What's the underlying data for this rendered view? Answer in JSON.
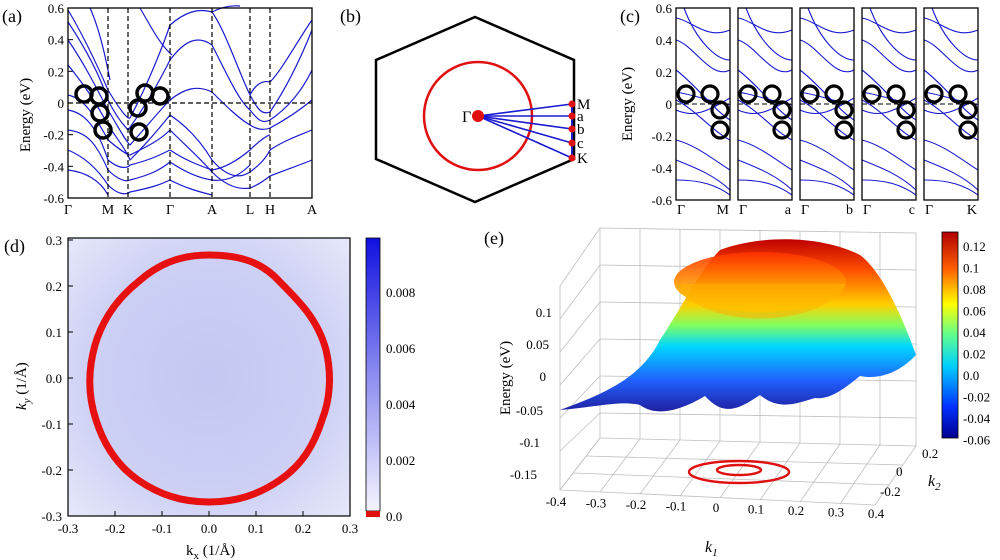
{
  "panels": {
    "a": {
      "label": "(a)",
      "ylabel": "Energy (eV)",
      "yticks": [
        "0.6",
        "0.4",
        "0.2",
        "0",
        "-0.2",
        "-0.4",
        "-0.6"
      ],
      "kpoints": [
        "Γ",
        "M",
        "K",
        "Γ",
        "A",
        "L",
        "H",
        "A"
      ]
    },
    "b": {
      "label": "(b)",
      "center": "Γ",
      "points": [
        "M",
        "a",
        "b",
        "c",
        "K"
      ]
    },
    "c": {
      "label": "(c)",
      "ylabel": "Energy (eV)",
      "yticks": [
        "0.6",
        "0.4",
        "0.2",
        "0",
        "-0.2",
        "-0.4",
        "-0.6"
      ],
      "subpanels": [
        {
          "left": "Γ",
          "right": "M"
        },
        {
          "left": "Γ",
          "right": "a"
        },
        {
          "left": "Γ",
          "right": "b"
        },
        {
          "left": "Γ",
          "right": "c"
        },
        {
          "left": "Γ",
          "right": "K"
        }
      ]
    },
    "d": {
      "label": "(d)",
      "xlabel": "k",
      "xlabel_sub": "x",
      "xlabel_unit": " (1/Å)",
      "ylabel": "k",
      "ylabel_sub": "y",
      "ylabel_unit": " (1/Å)",
      "xticks": [
        "-0.3",
        "-0.2",
        "-0.1",
        "0.0",
        "0.1",
        "0.2",
        "0.3"
      ],
      "yticks": [
        "0.3",
        "0.2",
        "0.1",
        "0.0",
        "-0.1",
        "-0.2",
        "-0.3"
      ],
      "colorbar_ticks": [
        "0.008",
        "0.006",
        "0.004",
        "0.002",
        "0.0"
      ]
    },
    "e": {
      "label": "(e)",
      "zlabel": "Energy (eV)",
      "zticks": [
        "0.1",
        "0.05",
        "0",
        "-0.05",
        "-0.1",
        "-0.15"
      ],
      "k1label": "k",
      "k1sub": "1",
      "k2label": "k",
      "k2sub": "2",
      "k1ticks": [
        "-0.4",
        "-0.3",
        "-0.2",
        "-0.1",
        "0",
        "0.1",
        "0.2",
        "0.3",
        "0.4"
      ],
      "k2ticks": [
        "0.2",
        "0",
        "-0.2"
      ],
      "colorbar_ticks": [
        "0.12",
        "0.1",
        "0.08",
        "0.06",
        "0.04",
        "0.02",
        "0.0",
        "-0.02",
        "-0.04",
        "-0.06"
      ]
    }
  },
  "colors": {
    "band": "#1a1ad0",
    "nodal": "#e01010",
    "circle": "#000000",
    "map_bg": "#c8ccf0"
  }
}
